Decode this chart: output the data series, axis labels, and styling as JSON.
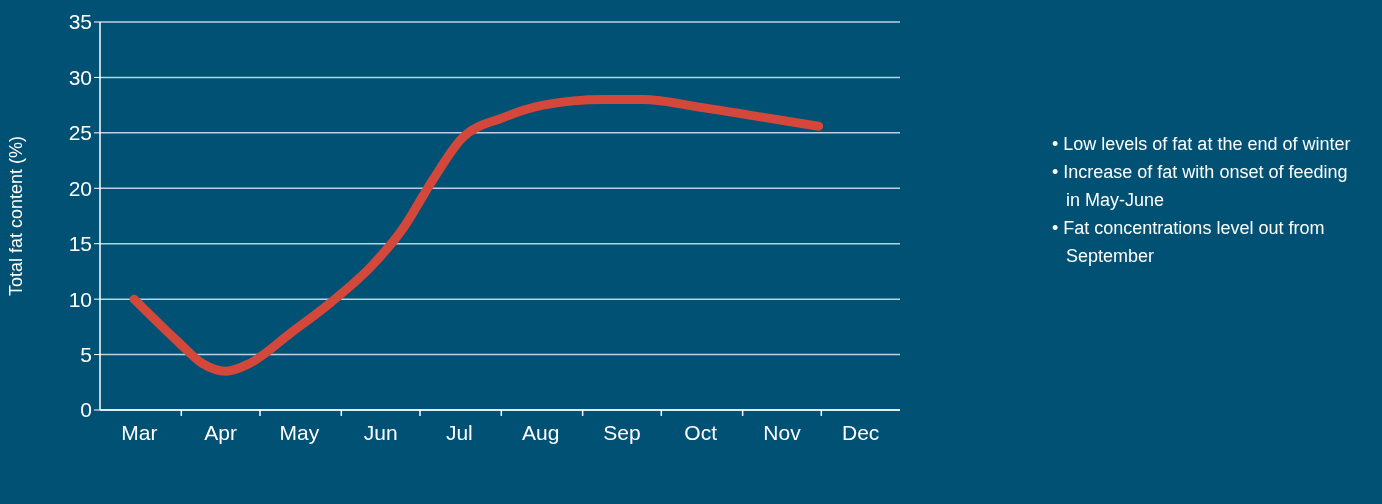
{
  "chart_data": {
    "type": "line",
    "ylabel": "Total fat content (%)",
    "x": [
      "--03-14",
      "--03-31",
      "--04-09",
      "--04-18",
      "--04-27",
      "--05-13",
      "--05-28",
      "--06-13",
      "--06-24",
      "--07-06",
      "--07-17",
      "--08-02",
      "--08-17",
      "--09-09",
      "--09-24",
      "--10-16",
      "--11-09",
      "--11-30"
    ],
    "series": [
      {
        "color": "#d4473b",
        "values": [
          10,
          6.1,
          4.2,
          3.5,
          4.2,
          7,
          9.7,
          13.1,
          16.2,
          20.8,
          24.5,
          26.4,
          27.5,
          28,
          28,
          27.3,
          26.4,
          25.6
        ]
      }
    ],
    "xlim": [
      "--03-01",
      "--12-31"
    ],
    "xticks": [
      {
        "value": "--03-16",
        "label": "Mar"
      },
      {
        "value": "--04-16",
        "label": "Apr"
      },
      {
        "value": "--05-16",
        "label": "May"
      },
      {
        "value": "--06-16",
        "label": "Jun"
      },
      {
        "value": "--07-16",
        "label": "Jul"
      },
      {
        "value": "--08-16",
        "label": "Aug"
      },
      {
        "value": "--09-16",
        "label": "Sep"
      },
      {
        "value": "--10-16",
        "label": "Oct"
      },
      {
        "value": "--11-16",
        "label": "Nov"
      },
      {
        "value": "--12-16",
        "label": "Dec"
      },
      {
        "value": "--04-01",
        "label": null
      },
      {
        "value": "--05-01",
        "label": null
      },
      {
        "value": "--06-01",
        "label": null
      },
      {
        "value": "--07-01",
        "label": null
      },
      {
        "value": "--08-01",
        "label": null
      },
      {
        "value": "--09-01",
        "label": null
      },
      {
        "value": "--10-01",
        "label": null
      },
      {
        "value": "--11-01",
        "label": null
      },
      {
        "value": "--12-01",
        "label": null
      }
    ],
    "ylim": [
      0,
      35
    ],
    "yticks": [
      0,
      5,
      10,
      15,
      20,
      25,
      30,
      35
    ],
    "grid": "y",
    "marker": "none",
    "line_style": "solid",
    "legend": false,
    "annotations": [
      "• Low levels of fat at the end of winter",
      "• Increase of fat with onset of feeding in May-June",
      "• Fat concentrations level out from September"
    ]
  }
}
